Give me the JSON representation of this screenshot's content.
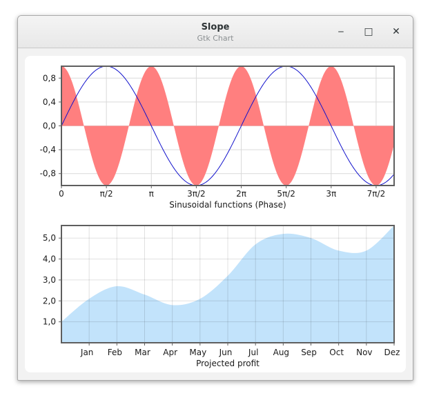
{
  "window": {
    "title": "Slope",
    "subtitle": "Gtk Chart",
    "minimize_glyph": "‒",
    "maximize_glyph": "□",
    "close_glyph": "✕"
  },
  "chart_data": [
    {
      "type": "area",
      "xlabel": "Sinusoidal functions (Phase)",
      "ylabel": "",
      "xlim": [
        0,
        7.4
      ],
      "ylim": [
        -1,
        1
      ],
      "x_ticks": [
        0,
        1,
        2,
        3,
        4,
        5,
        6,
        7
      ],
      "x_tick_labels": [
        "0",
        "π/2",
        "π",
        "3π/2",
        "2π",
        "5π/2",
        "3π",
        "7π/2"
      ],
      "y_ticks": [
        0.8,
        0.4,
        0.0,
        -0.4,
        -0.8
      ],
      "y_tick_labels": [
        "0,8",
        "0,4",
        "0,0",
        "-0,4",
        "-0,8"
      ],
      "grid": true,
      "series": [
        {
          "style": "filled area",
          "function": "cos(2x), x in units of π/2",
          "color": "#ff7f7f"
        },
        {
          "style": "line",
          "function": "sin(x), x in units of π/2",
          "color": "#1111cc"
        }
      ]
    },
    {
      "type": "area",
      "xlabel": "Projected profit",
      "ylabel": "",
      "categories": [
        "Jan",
        "Feb",
        "Mar",
        "Apr",
        "May",
        "Jun",
        "Jul",
        "Aug",
        "Sep",
        "Oct",
        "Nov",
        "Dez"
      ],
      "x": [
        0,
        1,
        2,
        3,
        4,
        5,
        6,
        7,
        8,
        9,
        10,
        11,
        12
      ],
      "values": [
        1.0,
        2.1,
        2.7,
        2.3,
        1.8,
        2.1,
        3.2,
        4.7,
        5.2,
        5.0,
        4.4,
        4.4,
        5.6
      ],
      "xlim": [
        0,
        12
      ],
      "ylim": [
        0,
        5.6
      ],
      "y_ticks": [
        1.0,
        2.0,
        3.0,
        4.0,
        5.0
      ],
      "y_tick_labels": [
        "1,0",
        "2,0",
        "3,0",
        "4,0",
        "5,0"
      ],
      "grid": true,
      "color": "#c2e3fb"
    }
  ]
}
